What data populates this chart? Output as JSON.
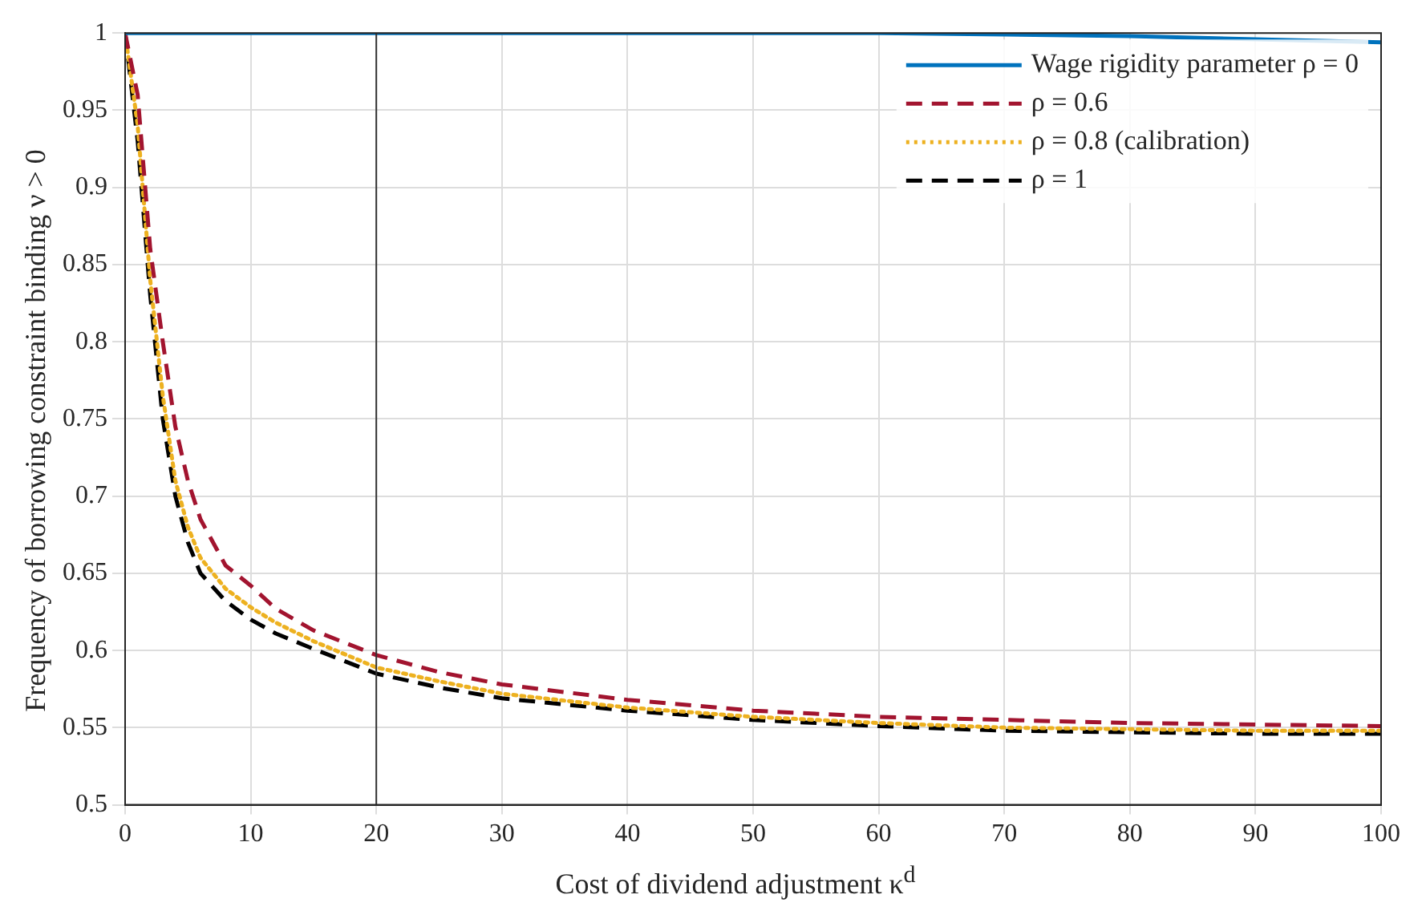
{
  "chart_data": {
    "type": "line",
    "xlabel": "Cost of dividend adjustment κ$^{d}$",
    "ylabel": "Frequency of borrowing constraint binding ν > 0",
    "x": [
      0,
      1,
      2,
      3,
      4,
      5,
      6,
      8,
      10,
      12,
      15,
      20,
      25,
      30,
      40,
      50,
      60,
      70,
      80,
      90,
      100
    ],
    "series": [
      {
        "name": "Wage rigidity parameter ρ = 0",
        "color": "#0072bd",
        "line_style": "solid",
        "values": [
          1,
          1,
          1,
          1,
          1,
          1,
          1,
          1,
          1,
          1,
          1,
          1,
          1,
          1,
          1,
          1,
          1,
          0.999,
          0.998,
          0.996,
          0.994
        ]
      },
      {
        "name": "ρ = 0.6",
        "color": "#a2142f",
        "line_style": "dashed",
        "values": [
          1,
          0.96,
          0.86,
          0.8,
          0.745,
          0.71,
          0.685,
          0.655,
          0.642,
          0.627,
          0.613,
          0.597,
          0.586,
          0.578,
          0.568,
          0.561,
          0.557,
          0.555,
          0.553,
          0.552,
          0.551
        ]
      },
      {
        "name": "ρ = 0.8 (calibration)",
        "color": "#edb120",
        "line_style": "dotted",
        "values": [
          1,
          0.94,
          0.84,
          0.765,
          0.71,
          0.68,
          0.66,
          0.64,
          0.628,
          0.618,
          0.606,
          0.589,
          0.58,
          0.572,
          0.563,
          0.557,
          0.553,
          0.55,
          0.549,
          0.548,
          0.548
        ]
      },
      {
        "name": "ρ = 1",
        "color": "#000000",
        "line_style": "dashed",
        "values": [
          1,
          0.93,
          0.83,
          0.75,
          0.7,
          0.67,
          0.65,
          0.632,
          0.62,
          0.611,
          0.601,
          0.585,
          0.576,
          0.569,
          0.561,
          0.555,
          0.551,
          0.548,
          0.547,
          0.546,
          0.546
        ]
      }
    ],
    "xlim": [
      0,
      100
    ],
    "xticks": [
      0,
      10,
      20,
      30,
      40,
      50,
      60,
      70,
      80,
      90,
      100
    ],
    "ylim": [
      0.5,
      1
    ],
    "yticks": [
      0.5,
      0.55,
      0.6,
      0.65,
      0.7,
      0.75,
      0.8,
      0.85,
      0.9,
      0.95,
      1
    ],
    "ref_lines": [
      {
        "axis": "x",
        "value": 20,
        "color": "#333333"
      }
    ],
    "grid": true,
    "legend": "top right",
    "marker": "none"
  }
}
